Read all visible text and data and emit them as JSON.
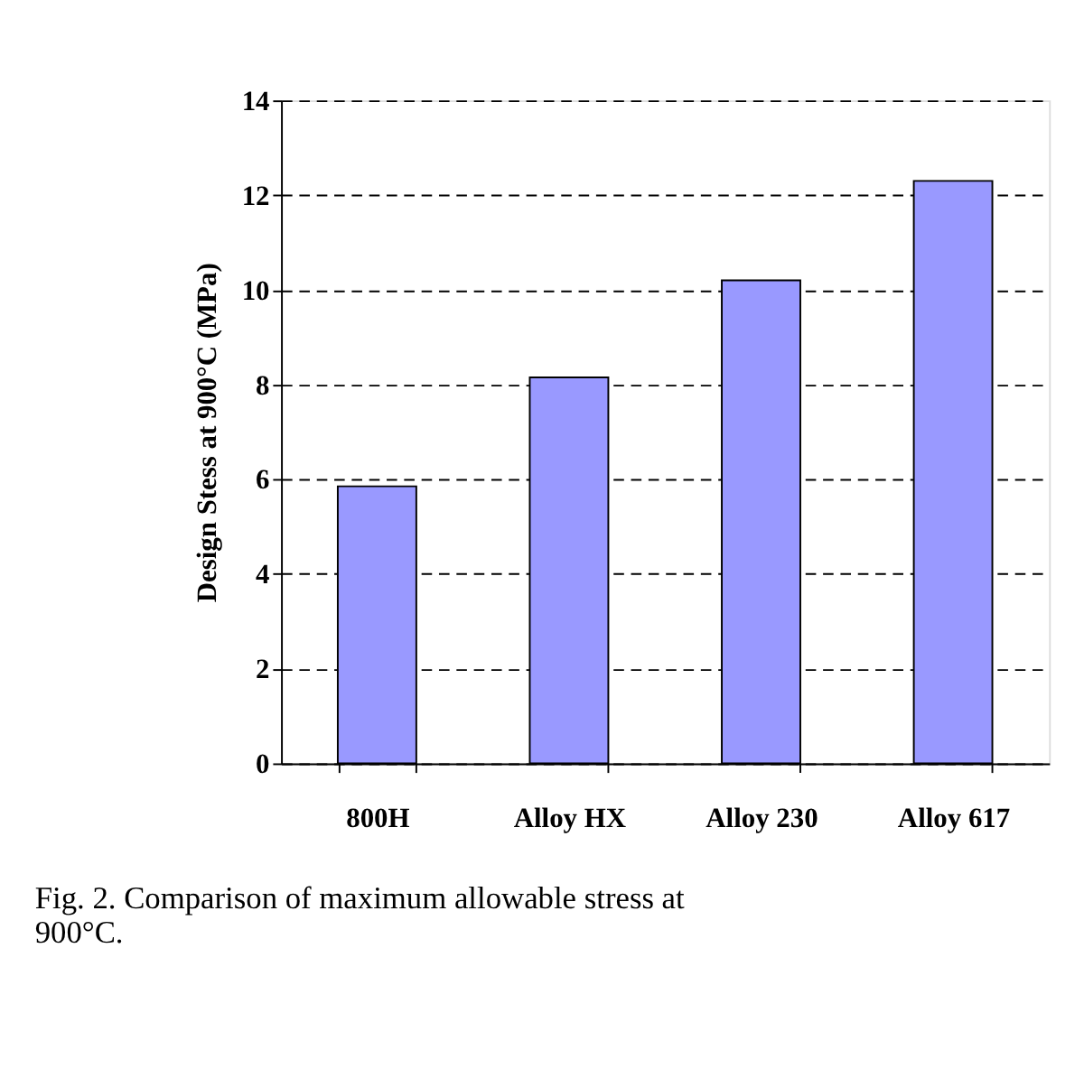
{
  "chart_data": {
    "type": "bar",
    "ylabel": "Design Stess at 900°C (MPa)",
    "categories": [
      "800H",
      "Alloy HX",
      "Alloy 230",
      "Alloy 617"
    ],
    "values": [
      5.85,
      8.15,
      10.2,
      12.3
    ],
    "color": "#9999ff",
    "ylim": [
      0,
      14
    ],
    "yticks": [
      0,
      2,
      4,
      6,
      8,
      10,
      12,
      14
    ],
    "grid": "y",
    "line_style": "dashed",
    "annotations": [
      "Fig. 2. Comparison of maximum allowable stress at 900°C."
    ]
  }
}
